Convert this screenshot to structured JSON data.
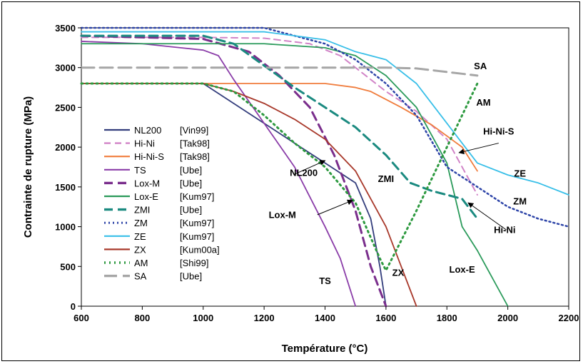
{
  "chart_data": {
    "type": "line",
    "title": "",
    "xlabel": "Température (°C)",
    "ylabel": "Contrainte de rupture (MPa)",
    "xlim": [
      600,
      2200
    ],
    "ylim": [
      0,
      3500
    ],
    "x_ticks": [
      "600",
      "800",
      "1000",
      "1200",
      "1400",
      "1600",
      "1800",
      "2000",
      "2200"
    ],
    "y_ticks": [
      "0",
      "500",
      "1000",
      "1500",
      "2000",
      "2500",
      "3000",
      "3500"
    ],
    "grid": false,
    "legend_position": "left",
    "series": [
      {
        "name": "NL200",
        "ref": "[Vin99]",
        "color": "#333d7c",
        "dash": "solid",
        "points": [
          [
            600,
            2800
          ],
          [
            1000,
            2800
          ],
          [
            1100,
            2550
          ],
          [
            1200,
            2300
          ],
          [
            1300,
            2050
          ],
          [
            1400,
            1800
          ],
          [
            1500,
            1550
          ],
          [
            1550,
            1100
          ],
          [
            1580,
            500
          ],
          [
            1600,
            0
          ]
        ]
      },
      {
        "name": "Hi-Ni",
        "ref": "[Tak98]",
        "color": "#d183c7",
        "dash": "dash",
        "points": [
          [
            600,
            3380
          ],
          [
            800,
            3380
          ],
          [
            1000,
            3380
          ],
          [
            1200,
            3370
          ],
          [
            1350,
            3300
          ],
          [
            1450,
            3150
          ],
          [
            1600,
            2700
          ],
          [
            1700,
            2450
          ],
          [
            1800,
            2100
          ],
          [
            1900,
            1400
          ]
        ]
      },
      {
        "name": "Hi-Ni-S",
        "ref": "[Tak98]",
        "color": "#f07c3c",
        "dash": "solid",
        "points": [
          [
            600,
            2800
          ],
          [
            1000,
            2800
          ],
          [
            1200,
            2800
          ],
          [
            1400,
            2800
          ],
          [
            1500,
            2750
          ],
          [
            1550,
            2700
          ],
          [
            1650,
            2500
          ],
          [
            1750,
            2280
          ],
          [
            1850,
            2000
          ],
          [
            1900,
            1700
          ]
        ]
      },
      {
        "name": "TS",
        "ref": "[Ube]",
        "color": "#8a3ca8",
        "dash": "solid",
        "points": [
          [
            600,
            3330
          ],
          [
            800,
            3300
          ],
          [
            1000,
            3220
          ],
          [
            1050,
            3150
          ],
          [
            1100,
            2850
          ],
          [
            1200,
            2300
          ],
          [
            1300,
            1750
          ],
          [
            1400,
            1000
          ],
          [
            1450,
            600
          ],
          [
            1500,
            0
          ]
        ]
      },
      {
        "name": "Lox-M",
        "ref": "[Ube]",
        "color": "#7a2e8c",
        "dash": "dash-thick",
        "points": [
          [
            600,
            3400
          ],
          [
            800,
            3380
          ],
          [
            1000,
            3360
          ],
          [
            1150,
            3200
          ],
          [
            1250,
            2900
          ],
          [
            1350,
            2500
          ],
          [
            1430,
            1900
          ],
          [
            1500,
            1200
          ],
          [
            1550,
            500
          ],
          [
            1600,
            0
          ]
        ]
      },
      {
        "name": "Lox-E",
        "ref": "[Kum97]",
        "color": "#2a9a5a",
        "dash": "solid",
        "points": [
          [
            600,
            3300
          ],
          [
            800,
            3300
          ],
          [
            1000,
            3300
          ],
          [
            1200,
            3300
          ],
          [
            1400,
            3250
          ],
          [
            1500,
            3150
          ],
          [
            1600,
            2900
          ],
          [
            1700,
            2500
          ],
          [
            1800,
            1800
          ],
          [
            1850,
            1000
          ],
          [
            1900,
            700
          ],
          [
            1950,
            350
          ],
          [
            2000,
            0
          ]
        ]
      },
      {
        "name": "ZMI",
        "ref": "[Ube]",
        "color": "#1b8a80",
        "dash": "dash-thick",
        "points": [
          [
            600,
            3400
          ],
          [
            800,
            3400
          ],
          [
            1000,
            3400
          ],
          [
            1100,
            3300
          ],
          [
            1300,
            2750
          ],
          [
            1400,
            2500
          ],
          [
            1500,
            2250
          ],
          [
            1600,
            1900
          ],
          [
            1680,
            1550
          ],
          [
            1750,
            1450
          ],
          [
            1850,
            1350
          ],
          [
            1900,
            1100
          ]
        ]
      },
      {
        "name": "ZM",
        "ref": "[Kum97]",
        "color": "#2d44a8",
        "dash": "dot",
        "points": [
          [
            600,
            3500
          ],
          [
            800,
            3500
          ],
          [
            1000,
            3500
          ],
          [
            1200,
            3500
          ],
          [
            1300,
            3400
          ],
          [
            1400,
            3300
          ],
          [
            1500,
            3100
          ],
          [
            1600,
            2800
          ],
          [
            1700,
            2400
          ],
          [
            1800,
            1750
          ],
          [
            1900,
            1500
          ],
          [
            2000,
            1250
          ],
          [
            2100,
            1100
          ],
          [
            2200,
            1000
          ]
        ]
      },
      {
        "name": "ZE",
        "ref": "[Kum97]",
        "color": "#38bfe8",
        "dash": "solid",
        "points": [
          [
            600,
            3450
          ],
          [
            800,
            3450
          ],
          [
            1000,
            3450
          ],
          [
            1200,
            3450
          ],
          [
            1300,
            3400
          ],
          [
            1400,
            3350
          ],
          [
            1500,
            3200
          ],
          [
            1600,
            3100
          ],
          [
            1700,
            2800
          ],
          [
            1800,
            2300
          ],
          [
            1900,
            1800
          ],
          [
            2000,
            1650
          ],
          [
            2100,
            1550
          ],
          [
            2200,
            1400
          ]
        ]
      },
      {
        "name": "ZX",
        "ref": "[Kum00a]",
        "color": "#a8382a",
        "dash": "solid",
        "points": [
          [
            600,
            2800
          ],
          [
            800,
            2800
          ],
          [
            1000,
            2800
          ],
          [
            1100,
            2700
          ],
          [
            1200,
            2550
          ],
          [
            1300,
            2350
          ],
          [
            1400,
            2100
          ],
          [
            1500,
            1700
          ],
          [
            1600,
            1000
          ],
          [
            1650,
            500
          ],
          [
            1700,
            0
          ]
        ]
      },
      {
        "name": "AM",
        "ref": "[Shi99]",
        "color": "#2e9a40",
        "dash": "dot-thick",
        "points": [
          [
            600,
            2800
          ],
          [
            1000,
            2800
          ],
          [
            1100,
            2700
          ],
          [
            1200,
            2400
          ],
          [
            1300,
            2050
          ],
          [
            1400,
            1750
          ],
          [
            1500,
            1300
          ],
          [
            1580,
            600
          ],
          [
            1600,
            450
          ],
          [
            1700,
            1200
          ],
          [
            1800,
            2000
          ],
          [
            1900,
            2800
          ]
        ]
      },
      {
        "name": "SA",
        "ref": "[Ube]",
        "color": "#a6a6a6",
        "dash": "dash-wide",
        "points": [
          [
            600,
            3000
          ],
          [
            1000,
            3000
          ],
          [
            1200,
            3000
          ],
          [
            1400,
            3000
          ],
          [
            1600,
            3000
          ],
          [
            1700,
            2990
          ],
          [
            1900,
            2900
          ]
        ]
      }
    ],
    "annotations": [
      {
        "text": "SA",
        "x": 1910,
        "y": 2980
      },
      {
        "text": "AM",
        "x": 1920,
        "y": 2520
      },
      {
        "text": "Hi-Ni-S",
        "x": 1970,
        "y": 2160
      },
      {
        "text": "ZE",
        "x": 2040,
        "y": 1630
      },
      {
        "text": "ZM",
        "x": 2040,
        "y": 1280
      },
      {
        "text": "Hi-Ni",
        "x": 1990,
        "y": 920
      },
      {
        "text": "NL200",
        "x": 1330,
        "y": 1640
      },
      {
        "text": "ZMI",
        "x": 1600,
        "y": 1560
      },
      {
        "text": "Lox-M",
        "x": 1260,
        "y": 1110
      },
      {
        "text": "TS",
        "x": 1400,
        "y": 280
      },
      {
        "text": "ZX",
        "x": 1640,
        "y": 380
      },
      {
        "text": "Lox-E",
        "x": 1850,
        "y": 420
      }
    ],
    "arrows": [
      {
        "from": [
          1300,
          1660
        ],
        "to": [
          1400,
          1830
        ]
      },
      {
        "from": [
          1375,
          1150
        ],
        "to": [
          1490,
          1330
        ]
      },
      {
        "from": [
          1970,
          2050
        ],
        "to": [
          1840,
          1930
        ]
      },
      {
        "from": [
          1995,
          960
        ],
        "to": [
          1870,
          1300
        ]
      }
    ]
  }
}
